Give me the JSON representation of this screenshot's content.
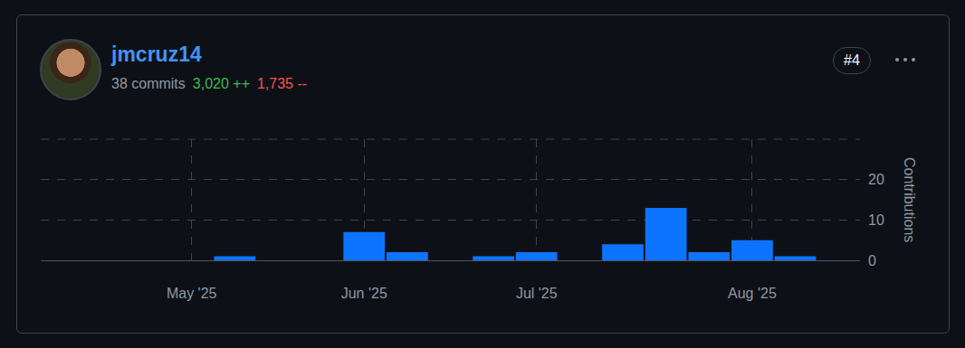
{
  "card": {
    "username": "jmcruz14",
    "commits": "38 commits",
    "additions": "3,020 ++",
    "deletions": "1,735 --",
    "rank": "#4"
  },
  "chart_data": {
    "type": "bar",
    "categories": [
      null,
      null,
      null,
      "May '25",
      null,
      null,
      null,
      "Jun '25",
      null,
      null,
      null,
      "Jul '25",
      null,
      null,
      null,
      null,
      "Aug '25",
      null,
      null
    ],
    "values": [
      0,
      0,
      0,
      0,
      1,
      0,
      0,
      7,
      2,
      0,
      1,
      2,
      0,
      4,
      13,
      2,
      5,
      1,
      0
    ],
    "color": "#0d74ff",
    "y_label": "Contributions",
    "ylim": [
      0,
      30
    ],
    "yticks": [
      0,
      10,
      20
    ],
    "grid": true
  }
}
